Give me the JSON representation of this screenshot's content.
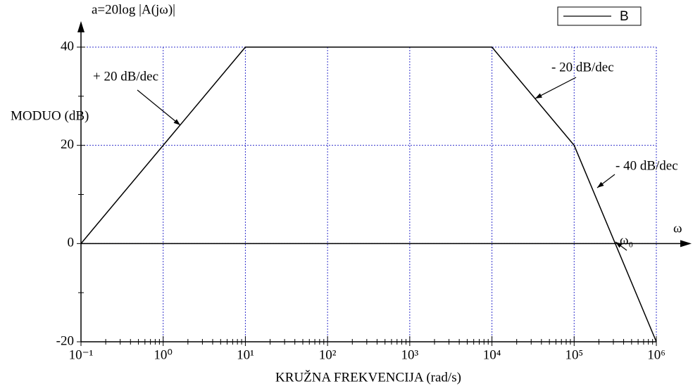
{
  "chart_data": {
    "type": "line",
    "xlabel": "KRUŽNA FREKVENCIJA (rad/s)",
    "ylabel": "MODUO (dB)",
    "annotations": [
      "a=20log |A(jω)|",
      "+ 20 dB/dec",
      "- 20 dB/dec",
      "- 40 dB/dec",
      "ω₀",
      "ω"
    ],
    "x": [
      0.1,
      10,
      10000,
      100000,
      1000000
    ],
    "series": [
      {
        "name": "B",
        "color": "#000000",
        "values": [
          0,
          40,
          40,
          20,
          -20
        ]
      }
    ],
    "xlog": true,
    "xlim": [
      0.1,
      1000000
    ],
    "xticks": [
      {
        "value": 0.1,
        "label": "10⁻¹"
      },
      {
        "value": 1,
        "label": "10⁰"
      },
      {
        "value": 10,
        "label": "10¹"
      },
      {
        "value": 100,
        "label": "10²"
      },
      {
        "value": 1000,
        "label": "10³"
      },
      {
        "value": 10000,
        "label": "10⁴"
      },
      {
        "value": 100000,
        "label": "10⁵"
      },
      {
        "value": 1000000,
        "label": "10⁶"
      }
    ],
    "x_minor_ticks": true,
    "ylim": [
      -20,
      40
    ],
    "yticks": [
      -20,
      0,
      20,
      40
    ],
    "yminor_ticks": [
      -10,
      10,
      30
    ],
    "grid": true,
    "grid_color": "#3333cc",
    "legend": "upper right"
  }
}
